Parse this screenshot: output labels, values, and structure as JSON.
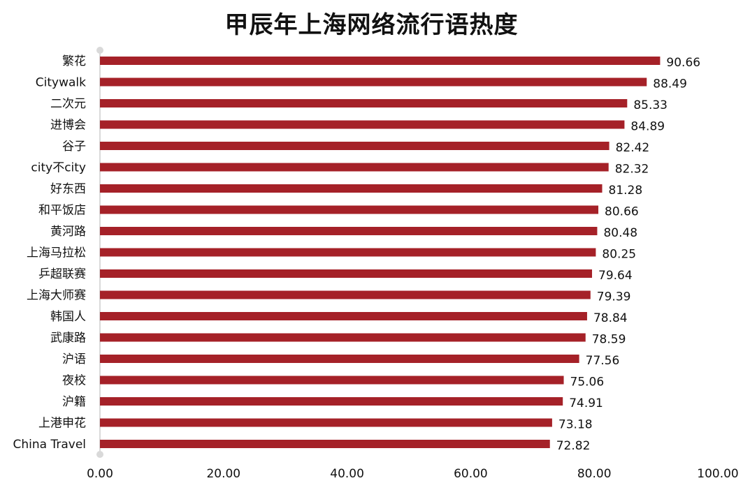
{
  "chart_data": {
    "type": "bar",
    "orientation": "horizontal",
    "title": "甲辰年上海网络流行语热度",
    "categories": [
      "繁花",
      "Citywalk",
      "二次元",
      "进博会",
      "谷子",
      "city不city",
      "好东西",
      "和平饭店",
      "黄河路",
      "上海马拉松",
      "乒超联赛",
      "上海大师赛",
      "韩国人",
      "武康路",
      "沪语",
      "夜校",
      "沪籍",
      "上港申花",
      "China Travel"
    ],
    "values": [
      90.66,
      88.49,
      85.33,
      84.89,
      82.42,
      82.32,
      81.28,
      80.66,
      80.48,
      80.25,
      79.64,
      79.39,
      78.84,
      78.59,
      77.56,
      75.06,
      74.91,
      73.18,
      72.82
    ],
    "value_labels": [
      "90.66",
      "88.49",
      "85.33",
      "84.89",
      "82.42",
      "82.32",
      "81.28",
      "80.66",
      "80.48",
      "80.25",
      "79.64",
      "79.39",
      "78.84",
      "78.59",
      "77.56",
      "75.06",
      "74.91",
      "73.18",
      "72.82"
    ],
    "xlim": [
      0,
      100
    ],
    "xticks": [
      "0.00",
      "20.00",
      "40.00",
      "60.00",
      "80.00",
      "100.00"
    ],
    "xlabel": "",
    "ylabel": "",
    "grid": false,
    "bar_color": "#A52128",
    "axis_color": "#D9D9D9"
  }
}
